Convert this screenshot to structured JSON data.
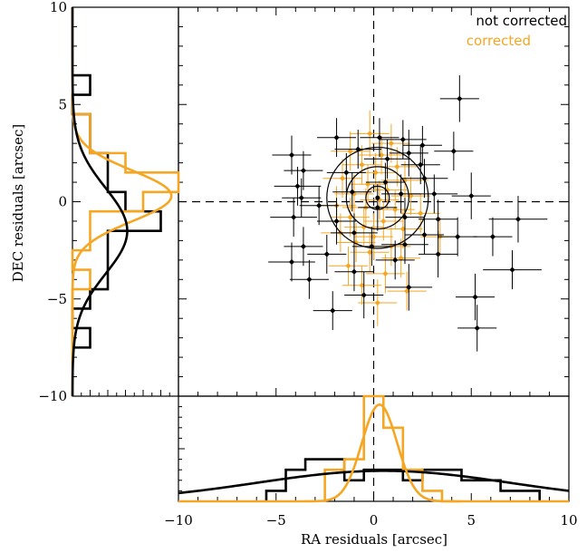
{
  "chart_data": [
    {
      "type": "scatter",
      "xlabel": "RA residuals [arcsec]",
      "ylabel": "DEC residuals [arcsec]",
      "xlim": [
        -10,
        10
      ],
      "ylim": [
        -10,
        10
      ],
      "xticks": [
        "−10",
        "−5",
        "0",
        "5",
        "10"
      ],
      "yticks": [
        "−10",
        "−5",
        "0",
        "5",
        "10"
      ],
      "legend": {
        "position": "top-right",
        "entries": [
          "not corrected",
          "corrected"
        ]
      },
      "colors": {
        "not_corrected": "#000000",
        "corrected": "#f5a623"
      },
      "reference_lines": {
        "x": 0,
        "y": 0,
        "style": "dashed"
      },
      "contours": {
        "center": [
          0.2,
          0.2
        ],
        "radii": [
          0.6,
          1.6,
          2.6
        ]
      },
      "series": [
        {
          "name": "not corrected",
          "color": "#000000",
          "points": [
            [
              4.4,
              5.3,
              1.0,
              1.2
            ],
            [
              0.3,
              3.3,
              1.0,
              1.0
            ],
            [
              1.5,
              3.2,
              1.2,
              1.0
            ],
            [
              -1.9,
              3.3,
              1.0,
              1.0
            ],
            [
              2.5,
              2.9,
              1.0,
              1.0
            ],
            [
              -0.8,
              2.7,
              1.2,
              1.0
            ],
            [
              1.8,
              2.5,
              1.0,
              1.2
            ],
            [
              -4.2,
              2.4,
              1.0,
              1.0
            ],
            [
              4.1,
              2.6,
              1.0,
              1.0
            ],
            [
              0.7,
              2.2,
              1.2,
              1.0
            ],
            [
              2.4,
              1.9,
              1.0,
              1.0
            ],
            [
              -3.6,
              1.6,
              1.0,
              1.0
            ],
            [
              -1.4,
              1.5,
              1.0,
              1.0
            ],
            [
              0.6,
              1.0,
              1.0,
              1.0
            ],
            [
              2.6,
              1.2,
              1.2,
              1.0
            ],
            [
              -3.9,
              0.8,
              1.2,
              1.0
            ],
            [
              -1.1,
              0.5,
              1.0,
              1.0
            ],
            [
              1.4,
              0.4,
              1.0,
              1.0
            ],
            [
              -3.7,
              0.2,
              1.0,
              1.0
            ],
            [
              5.0,
              0.3,
              1.0,
              1.2
            ],
            [
              3.1,
              0.4,
              1.2,
              1.0
            ],
            [
              -2.8,
              -0.2,
              1.0,
              1.0
            ],
            [
              0.2,
              -0.3,
              1.0,
              1.2
            ],
            [
              1.6,
              -0.8,
              1.0,
              1.0
            ],
            [
              3.3,
              -0.9,
              1.0,
              1.0
            ],
            [
              -4.1,
              -0.8,
              1.2,
              1.0
            ],
            [
              -1.9,
              -1.0,
              1.0,
              1.2
            ],
            [
              7.4,
              -0.9,
              1.5,
              1.2
            ],
            [
              -1.0,
              -1.6,
              1.2,
              1.0
            ],
            [
              2.6,
              -1.7,
              1.0,
              1.0
            ],
            [
              4.3,
              -1.8,
              1.0,
              1.0
            ],
            [
              6.1,
              -1.8,
              1.0,
              1.0
            ],
            [
              -3.6,
              -2.3,
              1.0,
              1.0
            ],
            [
              -0.1,
              -2.3,
              1.0,
              1.0
            ],
            [
              1.6,
              -2.2,
              1.2,
              1.0
            ],
            [
              -2.4,
              -2.7,
              1.0,
              1.0
            ],
            [
              3.3,
              -2.7,
              1.0,
              1.2
            ],
            [
              -4.2,
              -3.1,
              1.2,
              1.0
            ],
            [
              1.1,
              -3.0,
              1.0,
              1.0
            ],
            [
              7.1,
              -3.5,
              1.5,
              1.0
            ],
            [
              -1.0,
              -3.6,
              1.0,
              1.0
            ],
            [
              -3.3,
              -4.0,
              1.0,
              1.0
            ],
            [
              1.8,
              -4.4,
              1.2,
              1.2
            ],
            [
              -0.5,
              -4.8,
              1.0,
              1.2
            ],
            [
              5.2,
              -4.9,
              1.0,
              1.2
            ],
            [
              -2.1,
              -5.6,
              1.0,
              1.0
            ],
            [
              5.3,
              -6.5,
              1.0,
              1.2
            ]
          ]
        },
        {
          "name": "corrected",
          "color": "#f5a623",
          "points": [
            [
              -0.2,
              3.5,
              1.0,
              1.2
            ],
            [
              0.9,
              3.0,
              1.0,
              1.0
            ],
            [
              -1.2,
              2.6,
              1.0,
              1.0
            ],
            [
              0.4,
              2.4,
              1.2,
              1.0
            ],
            [
              -0.6,
              1.9,
              1.0,
              1.0
            ],
            [
              1.2,
              1.8,
              1.0,
              1.0
            ],
            [
              0.1,
              1.5,
              1.0,
              1.0
            ],
            [
              -1.6,
              1.2,
              1.0,
              1.0
            ],
            [
              1.6,
              1.1,
              1.2,
              1.0
            ],
            [
              -0.3,
              0.9,
              1.0,
              1.0
            ],
            [
              0.7,
              0.6,
              1.0,
              1.0
            ],
            [
              -1.0,
              0.4,
              1.0,
              1.0
            ],
            [
              1.9,
              0.3,
              1.0,
              1.0
            ],
            [
              0.3,
              0.1,
              1.0,
              1.0
            ],
            [
              -1.9,
              -0.2,
              1.0,
              1.0
            ],
            [
              -0.4,
              -0.3,
              1.2,
              1.0
            ],
            [
              1.1,
              -0.4,
              1.0,
              1.0
            ],
            [
              2.4,
              -0.6,
              1.0,
              1.0
            ],
            [
              -1.2,
              -0.8,
              1.0,
              1.0
            ],
            [
              0.5,
              -1.0,
              1.0,
              1.0
            ],
            [
              -0.5,
              -1.3,
              1.0,
              1.0
            ],
            [
              1.5,
              -1.4,
              1.0,
              1.0
            ],
            [
              -1.7,
              -1.6,
              1.0,
              1.0
            ],
            [
              0.0,
              -1.8,
              1.0,
              1.2
            ],
            [
              3.4,
              -1.8,
              1.0,
              1.0
            ],
            [
              -0.9,
              -2.1,
              1.0,
              1.0
            ],
            [
              0.9,
              -2.3,
              1.0,
              1.0
            ],
            [
              -0.2,
              -2.6,
              1.0,
              1.0
            ],
            [
              1.4,
              -2.9,
              1.0,
              1.0
            ],
            [
              -1.3,
              -3.3,
              1.0,
              1.0
            ],
            [
              0.6,
              -3.7,
              1.0,
              1.0
            ],
            [
              -0.6,
              -4.3,
              1.0,
              1.0
            ],
            [
              1.7,
              -4.6,
              1.0,
              1.0
            ],
            [
              0.2,
              -5.2,
              1.0,
              1.2
            ]
          ]
        }
      ]
    },
    {
      "type": "bar",
      "subtype": "histogram-with-gaussian",
      "orientation": "horizontal",
      "axis": "DEC residuals [arcsec]",
      "ylim": [
        -10,
        10
      ],
      "xlim": [
        0,
        6
      ],
      "bin_width": 1,
      "series": [
        {
          "name": "not corrected",
          "color": "#000000",
          "bins": [
            [
              6,
              1
            ],
            [
              5,
              0
            ],
            [
              4,
              1
            ],
            [
              3,
              1
            ],
            [
              2,
              2
            ],
            [
              1,
              2
            ],
            [
              0,
              3
            ],
            [
              -1,
              5
            ],
            [
              -2,
              2
            ],
            [
              -3,
              2
            ],
            [
              -4,
              2
            ],
            [
              -5,
              1
            ],
            [
              -6,
              0
            ],
            [
              -7,
              1
            ]
          ],
          "gaussian": {
            "mean": -1.5,
            "sigma": 2.2,
            "amplitude": 3.1
          }
        },
        {
          "name": "corrected",
          "color": "#f5a623",
          "bins": [
            [
              4,
              1
            ],
            [
              3,
              1
            ],
            [
              2,
              3
            ],
            [
              1,
              6
            ],
            [
              0,
              4
            ],
            [
              -1,
              1
            ],
            [
              -2,
              1
            ],
            [
              -3,
              0
            ],
            [
              -4,
              1
            ],
            [
              -5,
              0
            ],
            [
              -6,
              0
            ]
          ],
          "gaussian": {
            "mean": 0.3,
            "sigma": 1.3,
            "amplitude": 5.6
          }
        }
      ]
    },
    {
      "type": "bar",
      "subtype": "histogram-with-gaussian",
      "orientation": "vertical",
      "axis": "RA residuals [arcsec]",
      "xlim": [
        -10,
        10
      ],
      "ylim": [
        0,
        10
      ],
      "bin_width": 1,
      "series": [
        {
          "name": "not corrected",
          "color": "#000000",
          "bins": [
            [
              -5,
              1
            ],
            [
              -4,
              3
            ],
            [
              -3,
              4
            ],
            [
              -2,
              4
            ],
            [
              -1,
              2
            ],
            [
              0,
              3
            ],
            [
              1,
              3
            ],
            [
              2,
              2
            ],
            [
              3,
              3
            ],
            [
              4,
              3
            ],
            [
              5,
              2
            ],
            [
              6,
              2
            ],
            [
              7,
              1
            ],
            [
              8,
              1
            ]
          ],
          "gaussian": {
            "mean": 0.5,
            "sigma": 6.5,
            "amplitude": 2.9
          }
        },
        {
          "name": "corrected",
          "color": "#f5a623",
          "bins": [
            [
              -2,
              3
            ],
            [
              -1,
              4
            ],
            [
              0,
              10
            ],
            [
              1,
              7
            ],
            [
              2,
              3
            ],
            [
              3,
              1
            ],
            [
              4,
              0
            ]
          ],
          "gaussian": {
            "mean": 0.3,
            "sigma": 0.9,
            "amplitude": 9.2
          }
        }
      ]
    }
  ]
}
